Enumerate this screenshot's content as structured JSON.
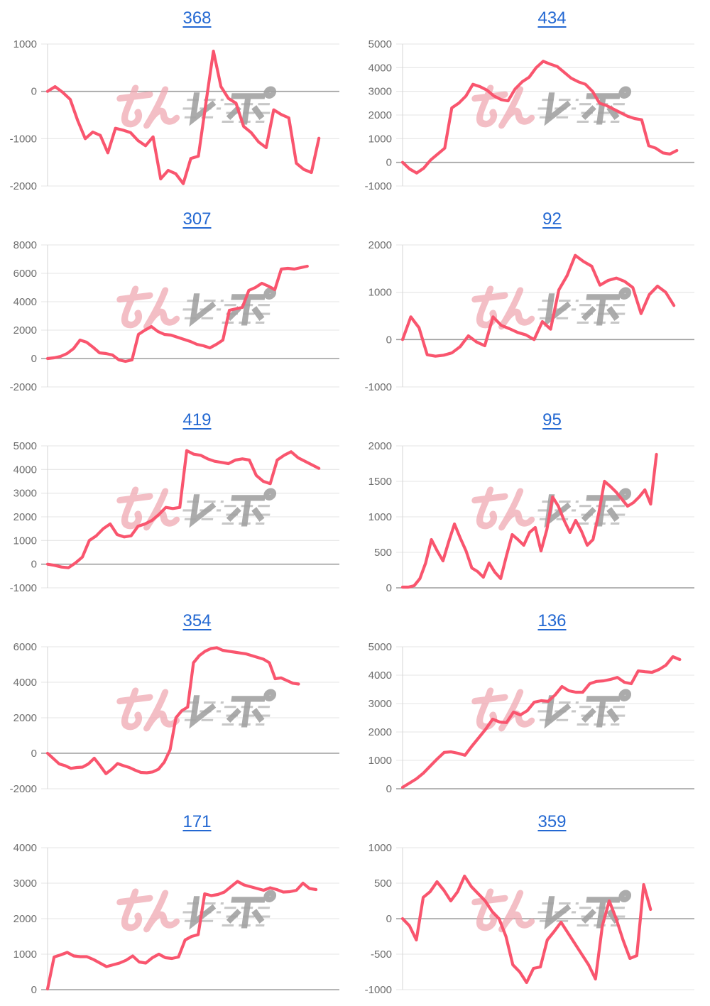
{
  "page": {
    "background": "#ffffff"
  },
  "watermark": {
    "text": "みんレポ",
    "pink_part": "みん",
    "gray_part": "レポ"
  },
  "style": {
    "line_color": "#f9556e",
    "grid_color": "#e4e4e4",
    "zero_line_color": "#9e9e9e",
    "axis_line_color": "#d9d9d9",
    "axis_label_color": "#6d6d6d",
    "title_color": "#2368d2",
    "watermark_pink": "#f0a9b2",
    "watermark_gray": "#a3a3a3"
  },
  "chart_data": [
    {
      "type": "line",
      "title": "368",
      "xlabel": "",
      "ylabel": "",
      "yticks": [
        1000,
        0,
        -1000,
        -2000
      ],
      "ylim": [
        -2000,
        1000
      ],
      "grid": true,
      "legend": false,
      "x_extent": 0.93,
      "values": [
        0,
        100,
        -20,
        -170,
        -620,
        -1000,
        -860,
        -930,
        -1300,
        -780,
        -820,
        -870,
        -1040,
        -1150,
        -960,
        -1850,
        -1670,
        -1740,
        -1950,
        -1420,
        -1370,
        -250,
        850,
        100,
        -150,
        -250,
        -740,
        -870,
        -1070,
        -1190,
        -390,
        -490,
        -560,
        -1520,
        -1650,
        -1715,
        -990
      ]
    },
    {
      "type": "line",
      "title": "434",
      "xlabel": "",
      "ylabel": "",
      "yticks": [
        5000,
        4000,
        3000,
        2000,
        1000,
        0,
        -1000
      ],
      "ylim": [
        -1000,
        5000
      ],
      "grid": true,
      "legend": false,
      "x_extent": 0.94,
      "values": [
        0,
        -280,
        -450,
        -250,
        100,
        350,
        600,
        2300,
        2500,
        2800,
        3300,
        3200,
        3050,
        2800,
        2650,
        2600,
        3100,
        3400,
        3600,
        4000,
        4270,
        4150,
        4050,
        3800,
        3550,
        3400,
        3300,
        3000,
        2500,
        2400,
        2250,
        2100,
        1950,
        1850,
        1800,
        700,
        600,
        400,
        350,
        500
      ]
    },
    {
      "type": "line",
      "title": "307",
      "xlabel": "",
      "ylabel": "",
      "yticks": [
        8000,
        6000,
        4000,
        2000,
        0,
        -2000
      ],
      "ylim": [
        -2000,
        8000
      ],
      "grid": true,
      "legend": false,
      "x_extent": 0.89,
      "values": [
        0,
        50,
        150,
        350,
        700,
        1300,
        1150,
        800,
        400,
        350,
        250,
        -100,
        -200,
        -100,
        1700,
        2000,
        2250,
        1900,
        1700,
        1650,
        1500,
        1350,
        1200,
        1000,
        900,
        750,
        1000,
        1300,
        3400,
        3500,
        3600,
        4800,
        5000,
        5300,
        5100,
        4850,
        6300,
        6350,
        6300,
        6400,
        6500
      ]
    },
    {
      "type": "line",
      "title": "92",
      "xlabel": "",
      "ylabel": "",
      "yticks": [
        2000,
        1000,
        0,
        -1000
      ],
      "ylim": [
        -1000,
        2000
      ],
      "grid": true,
      "legend": false,
      "x_extent": 0.93,
      "values": [
        0,
        480,
        250,
        -320,
        -350,
        -330,
        -280,
        -150,
        80,
        -50,
        -130,
        480,
        300,
        230,
        150,
        100,
        0,
        380,
        220,
        1050,
        1350,
        1780,
        1650,
        1550,
        1150,
        1250,
        1300,
        1230,
        1100,
        550,
        950,
        1130,
        1000,
        720
      ]
    },
    {
      "type": "line",
      "title": "419",
      "xlabel": "",
      "ylabel": "",
      "yticks": [
        5000,
        4000,
        3000,
        2000,
        1000,
        0,
        -1000
      ],
      "ylim": [
        -1000,
        5000
      ],
      "grid": true,
      "legend": false,
      "x_extent": 0.93,
      "values": [
        0,
        -50,
        -120,
        -150,
        50,
        300,
        1000,
        1200,
        1500,
        1700,
        1250,
        1150,
        1200,
        1600,
        1700,
        1850,
        2100,
        2400,
        2350,
        2400,
        4800,
        4650,
        4600,
        4450,
        4350,
        4300,
        4250,
        4400,
        4450,
        4400,
        3750,
        3500,
        3400,
        4400,
        4600,
        4750,
        4500,
        4350,
        4200,
        4050
      ]
    },
    {
      "type": "line",
      "title": "95",
      "xlabel": "",
      "ylabel": "",
      "yticks": [
        2000,
        1500,
        1000,
        500,
        0
      ],
      "ylim": [
        0,
        2000
      ],
      "grid": true,
      "legend": false,
      "x_extent": 0.87,
      "values": [
        10,
        10,
        30,
        130,
        350,
        680,
        520,
        380,
        650,
        900,
        700,
        520,
        280,
        230,
        150,
        350,
        220,
        130,
        450,
        750,
        680,
        600,
        780,
        850,
        520,
        820,
        1280,
        1150,
        950,
        780,
        950,
        800,
        600,
        680,
        1050,
        1500,
        1430,
        1350,
        1250,
        1150,
        1200,
        1280,
        1380,
        1180,
        1880
      ]
    },
    {
      "type": "line",
      "title": "354",
      "xlabel": "",
      "ylabel": "",
      "yticks": [
        6000,
        4000,
        2000,
        0,
        -2000
      ],
      "ylim": [
        -2000,
        6000
      ],
      "grid": true,
      "legend": false,
      "x_extent": 0.86,
      "values": [
        0,
        -300,
        -600,
        -700,
        -850,
        -800,
        -780,
        -600,
        -280,
        -700,
        -1150,
        -900,
        -580,
        -700,
        -800,
        -950,
        -1080,
        -1100,
        -1050,
        -900,
        -500,
        200,
        2000,
        2400,
        2600,
        5100,
        5500,
        5750,
        5900,
        5950,
        5800,
        5750,
        5700,
        5650,
        5600,
        5500,
        5400,
        5300,
        5100,
        4200,
        4250,
        4100,
        3950,
        3900
      ]
    },
    {
      "type": "line",
      "title": "136",
      "xlabel": "",
      "ylabel": "",
      "yticks": [
        5000,
        4000,
        3000,
        2000,
        1000,
        0
      ],
      "ylim": [
        0,
        5000
      ],
      "grid": true,
      "legend": false,
      "x_extent": 0.95,
      "values": [
        50,
        200,
        350,
        550,
        800,
        1050,
        1280,
        1300,
        1250,
        1180,
        1500,
        1800,
        2100,
        2450,
        2350,
        2330,
        2700,
        2600,
        2750,
        3050,
        3100,
        3080,
        3300,
        3600,
        3450,
        3400,
        3400,
        3700,
        3780,
        3800,
        3850,
        3920,
        3750,
        3700,
        4150,
        4120,
        4100,
        4200,
        4350,
        4650,
        4550
      ]
    },
    {
      "type": "line",
      "title": "171",
      "xlabel": "",
      "ylabel": "",
      "yticks": [
        4000,
        3000,
        2000,
        1000,
        0
      ],
      "ylim": [
        0,
        4000
      ],
      "grid": true,
      "legend": false,
      "x_extent": 0.92,
      "values": [
        20,
        920,
        980,
        1050,
        950,
        930,
        930,
        850,
        750,
        650,
        700,
        750,
        830,
        950,
        780,
        750,
        900,
        1000,
        900,
        880,
        920,
        1400,
        1500,
        1550,
        2700,
        2650,
        2680,
        2750,
        2900,
        3050,
        2950,
        2900,
        2850,
        2800,
        2870,
        2820,
        2750,
        2760,
        2800,
        3000,
        2850,
        2820
      ]
    },
    {
      "type": "line",
      "title": "359",
      "xlabel": "",
      "ylabel": "",
      "yticks": [
        1000,
        500,
        0,
        -500,
        -1000
      ],
      "ylim": [
        -1000,
        1000
      ],
      "grid": true,
      "legend": false,
      "x_extent": 0.85,
      "values": [
        0,
        -100,
        -300,
        300,
        380,
        520,
        400,
        250,
        380,
        600,
        450,
        350,
        250,
        100,
        0,
        -250,
        -650,
        -750,
        -900,
        -700,
        -680,
        -300,
        -180,
        -50,
        -200,
        -350,
        -500,
        -650,
        -850,
        -100,
        250,
        0,
        -300,
        -560,
        -520,
        480,
        130
      ]
    }
  ]
}
